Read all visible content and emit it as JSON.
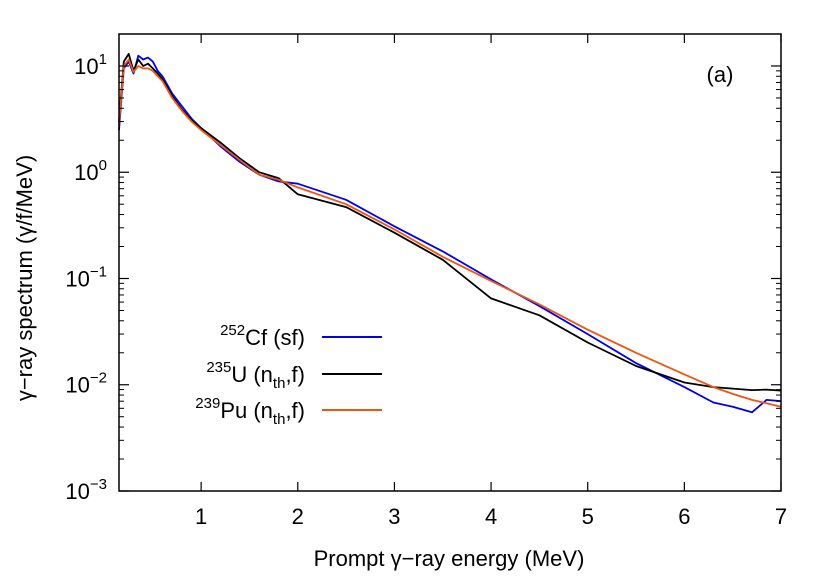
{
  "chart_data": {
    "type": "line",
    "panel_label": "(a)",
    "xlabel": "Prompt γ−ray energy (MeV)",
    "ylabel": "γ−ray spectrum (γ/f/MeV)",
    "xlim": [
      0.15,
      7.0
    ],
    "ylim": [
      0.001,
      20
    ],
    "y_scale": "log",
    "x_ticks": [
      1,
      2,
      3,
      4,
      5,
      6,
      7
    ],
    "x_tick_labels": [
      "1",
      "2",
      "3",
      "4",
      "5",
      "6",
      "7"
    ],
    "y_ticks": [
      {
        "value": 10,
        "base": "10",
        "exp": "1"
      },
      {
        "value": 1,
        "base": "10",
        "exp": "0"
      },
      {
        "value": 0.1,
        "base": "10",
        "exp": "−1"
      },
      {
        "value": 0.01,
        "base": "10",
        "exp": "−2"
      },
      {
        "value": 0.001,
        "base": "10",
        "exp": "−3"
      }
    ],
    "legend_position": "left",
    "grid": false,
    "series": [
      {
        "name": "252Cf (sf)",
        "legend": {
          "sup": "252",
          "main": "Cf (sf)"
        },
        "color": "#0000ee",
        "x": [
          0.15,
          0.2,
          0.25,
          0.3,
          0.35,
          0.4,
          0.45,
          0.5,
          0.55,
          0.6,
          0.7,
          0.8,
          0.9,
          1.0,
          1.2,
          1.4,
          1.6,
          1.8,
          2.0,
          2.5,
          3.0,
          3.5,
          4.0,
          4.5,
          5.0,
          5.5,
          6.0,
          6.3,
          6.5,
          6.7,
          6.85,
          7.0
        ],
        "y": [
          2.5,
          9.5,
          11,
          8.5,
          12.5,
          11.5,
          12,
          11,
          9,
          8,
          5.5,
          4.2,
          3.2,
          2.6,
          1.75,
          1.25,
          0.95,
          0.82,
          0.78,
          0.55,
          0.31,
          0.18,
          0.098,
          0.055,
          0.03,
          0.016,
          0.0095,
          0.0068,
          0.0062,
          0.0055,
          0.0072,
          0.007
        ]
      },
      {
        "name": "235U (nth,f)",
        "legend": {
          "sup": "235",
          "main": "U (n",
          "sub": "th",
          "tail": ",f)"
        },
        "color": "#000000",
        "x": [
          0.15,
          0.2,
          0.25,
          0.3,
          0.35,
          0.4,
          0.45,
          0.5,
          0.55,
          0.6,
          0.7,
          0.8,
          0.9,
          1.0,
          1.2,
          1.4,
          1.6,
          1.8,
          2.0,
          2.5,
          3.0,
          3.5,
          4.0,
          4.5,
          5.0,
          5.5,
          6.0,
          6.3,
          6.5,
          6.7,
          6.85,
          7.0
        ],
        "y": [
          3.0,
          11,
          13,
          9,
          11.5,
          10,
          10.5,
          9.5,
          8.5,
          7.5,
          5.2,
          3.9,
          3.1,
          2.6,
          1.9,
          1.35,
          1.0,
          0.88,
          0.62,
          0.47,
          0.27,
          0.15,
          0.065,
          0.045,
          0.025,
          0.015,
          0.0105,
          0.0095,
          0.0092,
          0.0089,
          0.009,
          0.0088
        ]
      },
      {
        "name": "239Pu (nth,f)",
        "legend": {
          "sup": "239",
          "main": "Pu (n",
          "sub": "th",
          "tail": ",f)"
        },
        "color": "#ee5511",
        "x": [
          0.15,
          0.2,
          0.25,
          0.3,
          0.35,
          0.4,
          0.45,
          0.5,
          0.55,
          0.6,
          0.7,
          0.8,
          0.9,
          1.0,
          1.2,
          1.4,
          1.6,
          1.8,
          2.0,
          2.5,
          3.0,
          3.5,
          4.0,
          4.5,
          5.0,
          5.5,
          6.0,
          6.3,
          6.5,
          6.7,
          6.85,
          7.0
        ],
        "y": [
          2.8,
          10,
          11.5,
          8.8,
          10,
          9.5,
          9.5,
          9,
          8,
          7.2,
          5,
          3.8,
          3.0,
          2.5,
          1.8,
          1.3,
          0.95,
          0.85,
          0.72,
          0.5,
          0.29,
          0.16,
          0.095,
          0.057,
          0.033,
          0.02,
          0.0125,
          0.0095,
          0.0082,
          0.0072,
          0.0067,
          0.0062
        ]
      }
    ]
  }
}
